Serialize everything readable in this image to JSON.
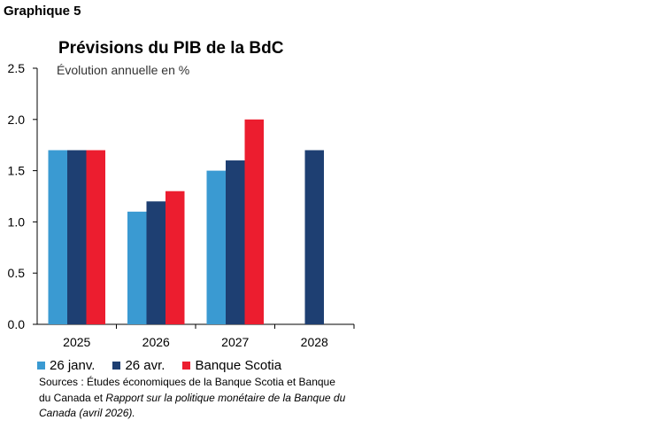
{
  "figure_label": "Graphique 5",
  "source": {
    "prefix": "Sources : Études économiques de la Banque Scotia et Banque du Canada et ",
    "italic": "Rapport sur la politique monétaire de la Banque du Canada (avril 2026)."
  },
  "colors": {
    "light_blue": "#3a9ad2",
    "dark_blue": "#1e3f72",
    "red": "#ec1d2f"
  },
  "chart_data": {
    "type": "bar",
    "title": "Prévisions du PIB de la BdC",
    "subtitle": "Évolution annuelle en %",
    "categories": [
      "2025",
      "2026",
      "2027",
      "2028"
    ],
    "series": [
      {
        "name": "26 janv.",
        "color": "#3a9ad2",
        "values": [
          1.7,
          1.1,
          1.5,
          null
        ]
      },
      {
        "name": "26 avr.",
        "color": "#1e3f72",
        "values": [
          1.7,
          1.2,
          1.6,
          1.7
        ]
      },
      {
        "name": "Banque Scotia",
        "color": "#ec1d2f",
        "values": [
          1.7,
          1.3,
          2.0,
          null
        ]
      }
    ],
    "ylim": [
      0,
      2.5
    ],
    "yticks": [
      "0.0",
      "0.5",
      "1.0",
      "1.5",
      "2.0",
      "2.5"
    ],
    "grid": false,
    "legend_position": "bottom"
  }
}
